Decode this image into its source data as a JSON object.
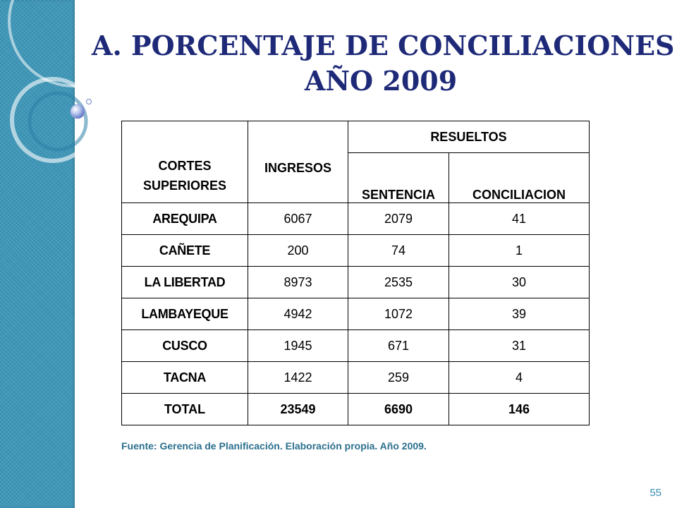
{
  "title": {
    "line1": "A. PORCENTAJE DE CONCILIACIONES:",
    "line2": "AÑO 2009"
  },
  "table": {
    "headers": {
      "cortes": "CORTES SUPERIORES",
      "ingresos": "INGRESOS",
      "resueltos": "RESUELTOS",
      "sentencia": "SENTENCIA",
      "conciliacion": "CONCILIACION"
    },
    "rows": [
      {
        "corte": "AREQUIPA",
        "ingresos": "6067",
        "sentencia": "2079",
        "conciliacion": "41"
      },
      {
        "corte": "CAÑETE",
        "ingresos": "200",
        "sentencia": "74",
        "conciliacion": "1"
      },
      {
        "corte": "LA LIBERTAD",
        "ingresos": "8973",
        "sentencia": "2535",
        "conciliacion": "30"
      },
      {
        "corte": "LAMBAYEQUE",
        "ingresos": "4942",
        "sentencia": "1072",
        "conciliacion": "39"
      },
      {
        "corte": "CUSCO",
        "ingresos": "1945",
        "sentencia": "671",
        "conciliacion": "31"
      },
      {
        "corte": "TACNA",
        "ingresos": "1422",
        "sentencia": "259",
        "conciliacion": "4"
      }
    ],
    "total": {
      "corte": "TOTAL",
      "ingresos": "23549",
      "sentencia": "6690",
      "conciliacion": "146"
    }
  },
  "source_note": "Fuente: Gerencia de Planificación. Elaboración propia. Año 2009.",
  "page_number": "55",
  "colors": {
    "title": "#1e2a78",
    "side_band": "#3f97b8",
    "source_note": "#2b6f8e",
    "page_number": "#3a8fb4"
  }
}
